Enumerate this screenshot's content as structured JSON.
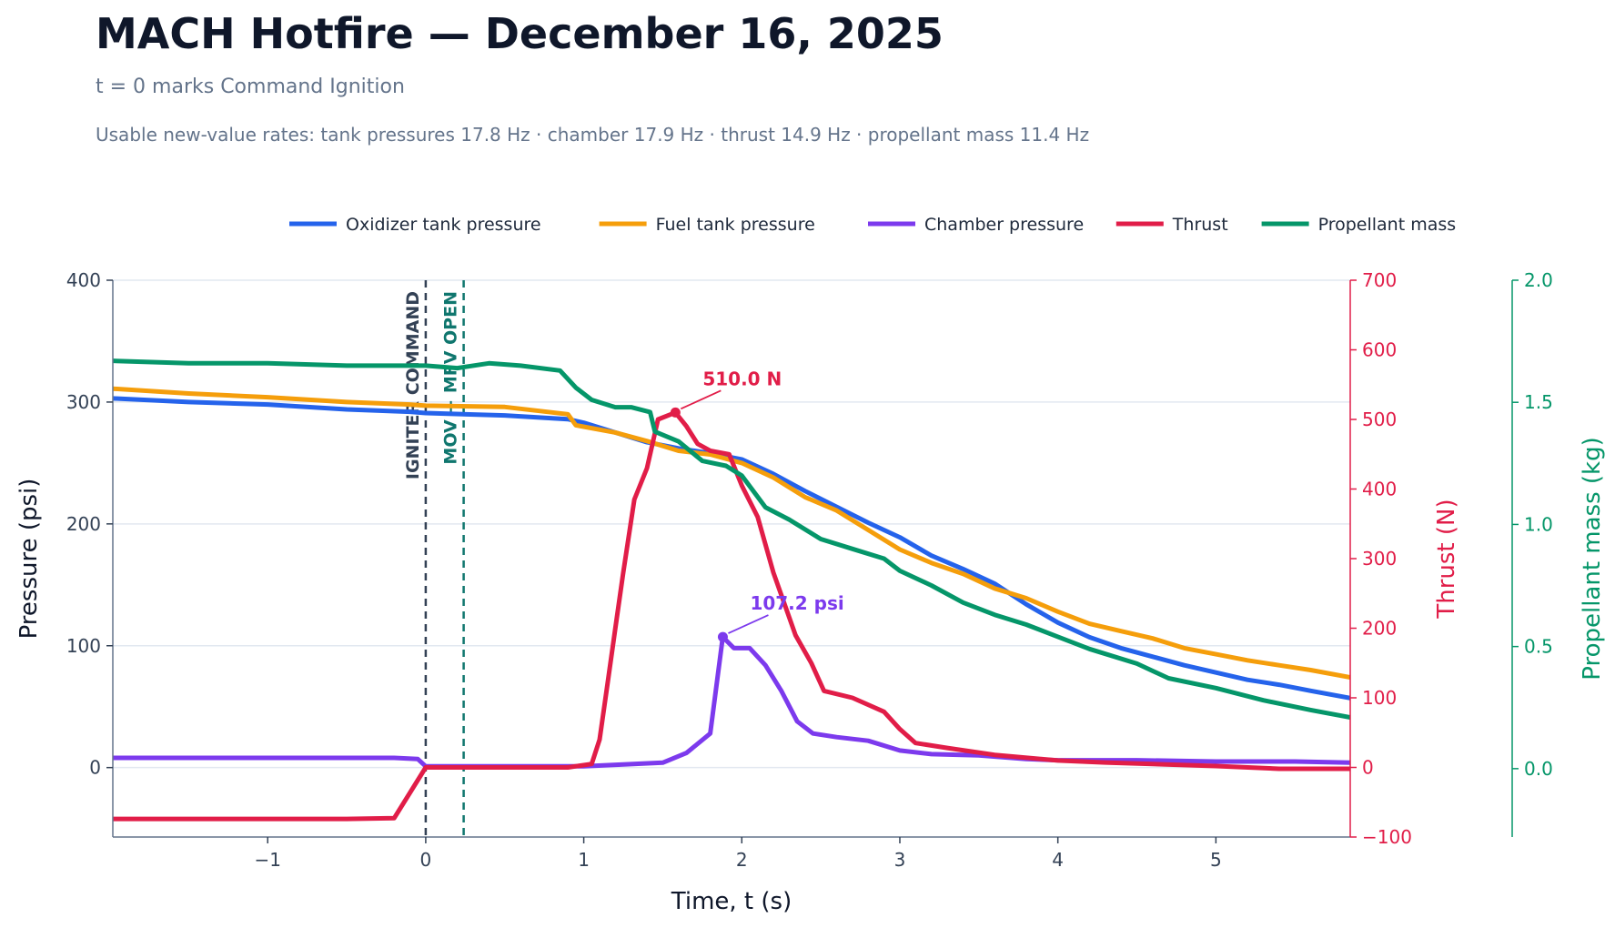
{
  "header": {
    "title": "MACH Hotfire — December 16, 2025",
    "subtitle": "t = 0 marks Command Ignition",
    "rates": "Usable new-value rates: tank pressures 17.8 Hz · chamber 17.9 Hz · thrust 14.9 Hz · propellant mass 11.4 Hz"
  },
  "colors": {
    "ox": "#2563eb",
    "fuel": "#f59e0b",
    "chamber": "#7c3aed",
    "thrust": "#e11d48",
    "mass": "#059669",
    "igniter": "#334155",
    "mov": "#0f766e"
  },
  "chart_data": {
    "type": "line",
    "xlabel": "Time, t (s)",
    "ylabel": "Pressure (psi)",
    "y2label": "Thrust (N)",
    "y3label": "Propellant mass (kg)",
    "xlim": [
      -1.98,
      5.85
    ],
    "ylim": [
      -57,
      400
    ],
    "y2lim": [
      -100,
      700
    ],
    "y3lim": [
      -0.28,
      2.0
    ],
    "xticks": [
      -1,
      0,
      1,
      2,
      3,
      4,
      5
    ],
    "xtick_labels": [
      "−1",
      "0",
      "1",
      "2",
      "3",
      "4",
      "5"
    ],
    "yticks": [
      0,
      100,
      200,
      300,
      400
    ],
    "ytick_labels": [
      "0",
      "100",
      "200",
      "300",
      "400"
    ],
    "y2ticks": [
      -100,
      0,
      100,
      200,
      300,
      400,
      500,
      600,
      700
    ],
    "y2tick_labels": [
      "−100",
      "0",
      "100",
      "200",
      "300",
      "400",
      "500",
      "600",
      "700"
    ],
    "y3ticks": [
      0.0,
      0.5,
      1.0,
      1.5,
      2.0
    ],
    "y3tick_labels": [
      "0.0",
      "0.5",
      "1.0",
      "1.5",
      "2.0"
    ],
    "grid": true,
    "legend_position": "top",
    "events": [
      {
        "t": 0.0,
        "label": "IGNITER COMMAND",
        "color_key": "igniter"
      },
      {
        "t": 0.24,
        "label": "MOV + MFV OPEN",
        "color_key": "mov"
      }
    ],
    "annotations": [
      {
        "series": "Thrust",
        "x": 1.58,
        "y": 510.0,
        "text": "510.0 N"
      },
      {
        "series": "Chamber pressure",
        "x": 1.88,
        "y": 107.2,
        "text": "107.2 psi"
      }
    ],
    "series": [
      {
        "name": "Oxidizer tank pressure",
        "axis": "left",
        "color_key": "ox",
        "x": [
          -1.98,
          -1.5,
          -1.0,
          -0.5,
          -0.1,
          0.0,
          0.5,
          0.9,
          1.0,
          1.2,
          1.4,
          1.6,
          1.8,
          2.0,
          2.2,
          2.4,
          2.6,
          2.8,
          3.0,
          3.2,
          3.4,
          3.6,
          3.8,
          4.0,
          4.2,
          4.4,
          4.6,
          4.8,
          5.0,
          5.2,
          5.4,
          5.6,
          5.85
        ],
        "y": [
          303,
          300,
          298,
          294,
          292,
          291,
          289,
          286,
          283,
          275,
          267,
          262,
          258,
          253,
          241,
          227,
          214,
          201,
          189,
          174,
          163,
          151,
          134,
          119,
          107,
          98,
          91,
          84,
          78,
          72,
          68,
          63,
          57
        ]
      },
      {
        "name": "Fuel tank pressure",
        "axis": "left",
        "color_key": "fuel",
        "x": [
          -1.98,
          -1.5,
          -1.0,
          -0.5,
          -0.1,
          0.0,
          0.5,
          0.9,
          0.95,
          1.2,
          1.4,
          1.6,
          1.8,
          2.0,
          2.2,
          2.4,
          2.6,
          2.8,
          3.0,
          3.2,
          3.4,
          3.6,
          3.8,
          4.0,
          4.2,
          4.4,
          4.6,
          4.8,
          5.0,
          5.2,
          5.4,
          5.6,
          5.85
        ],
        "y": [
          311,
          307,
          304,
          300,
          298,
          297,
          296,
          290,
          281,
          275,
          268,
          260,
          257,
          250,
          238,
          222,
          211,
          195,
          179,
          168,
          159,
          147,
          139,
          128,
          118,
          112,
          106,
          98,
          93,
          88,
          84,
          80,
          74
        ]
      },
      {
        "name": "Chamber pressure",
        "axis": "left",
        "color_key": "chamber",
        "x": [
          -1.98,
          -1.5,
          -1.0,
          -0.5,
          -0.2,
          -0.05,
          0.0,
          0.5,
          1.0,
          1.5,
          1.65,
          1.8,
          1.88,
          1.95,
          2.05,
          2.15,
          2.25,
          2.35,
          2.45,
          2.6,
          2.8,
          3.0,
          3.2,
          3.5,
          3.8,
          4.0,
          4.5,
          5.0,
          5.5,
          5.85
        ],
        "y": [
          8,
          8,
          8,
          8,
          8,
          7,
          1,
          1,
          1,
          4,
          12,
          28,
          107.2,
          98,
          98,
          84,
          63,
          38,
          28,
          25,
          22,
          14,
          11,
          10,
          7,
          6,
          6,
          5,
          5,
          4
        ]
      },
      {
        "name": "Thrust",
        "axis": "right",
        "color_key": "thrust",
        "x": [
          -1.98,
          -1.5,
          -1.0,
          -0.5,
          -0.2,
          0.0,
          0.5,
          0.9,
          1.05,
          1.1,
          1.15,
          1.2,
          1.25,
          1.32,
          1.4,
          1.47,
          1.58,
          1.65,
          1.72,
          1.8,
          1.92,
          2.0,
          2.1,
          2.2,
          2.34,
          2.44,
          2.52,
          2.7,
          2.9,
          3.0,
          3.1,
          3.3,
          3.6,
          4.0,
          4.3,
          5.0,
          5.4,
          5.85
        ],
        "y": [
          -74,
          -74,
          -74,
          -74,
          -73,
          0,
          0,
          0,
          5,
          40,
          120,
          200,
          280,
          385,
          430,
          500,
          510.0,
          490,
          465,
          455,
          450,
          405,
          360,
          280,
          190,
          150,
          110,
          100,
          80,
          55,
          35,
          28,
          18,
          10,
          7,
          2,
          -2,
          -2
        ]
      },
      {
        "name": "Propellant mass",
        "axis": "right3",
        "color_key": "mass",
        "x": [
          -1.98,
          -1.5,
          -1.0,
          -0.5,
          -0.2,
          0.0,
          0.2,
          0.4,
          0.6,
          0.85,
          0.95,
          1.05,
          1.2,
          1.3,
          1.42,
          1.45,
          1.6,
          1.75,
          1.9,
          2.0,
          2.15,
          2.3,
          2.5,
          2.7,
          2.9,
          3.0,
          3.2,
          3.4,
          3.6,
          3.8,
          4.0,
          4.2,
          4.5,
          4.7,
          5.0,
          5.3,
          5.6,
          5.85
        ],
        "y": [
          1.67,
          1.66,
          1.66,
          1.65,
          1.65,
          1.65,
          1.64,
          1.66,
          1.65,
          1.63,
          1.56,
          1.51,
          1.48,
          1.48,
          1.46,
          1.38,
          1.34,
          1.26,
          1.24,
          1.2,
          1.07,
          1.02,
          0.94,
          0.9,
          0.86,
          0.81,
          0.75,
          0.68,
          0.63,
          0.59,
          0.54,
          0.49,
          0.43,
          0.37,
          0.33,
          0.28,
          0.24,
          0.21
        ]
      }
    ]
  }
}
